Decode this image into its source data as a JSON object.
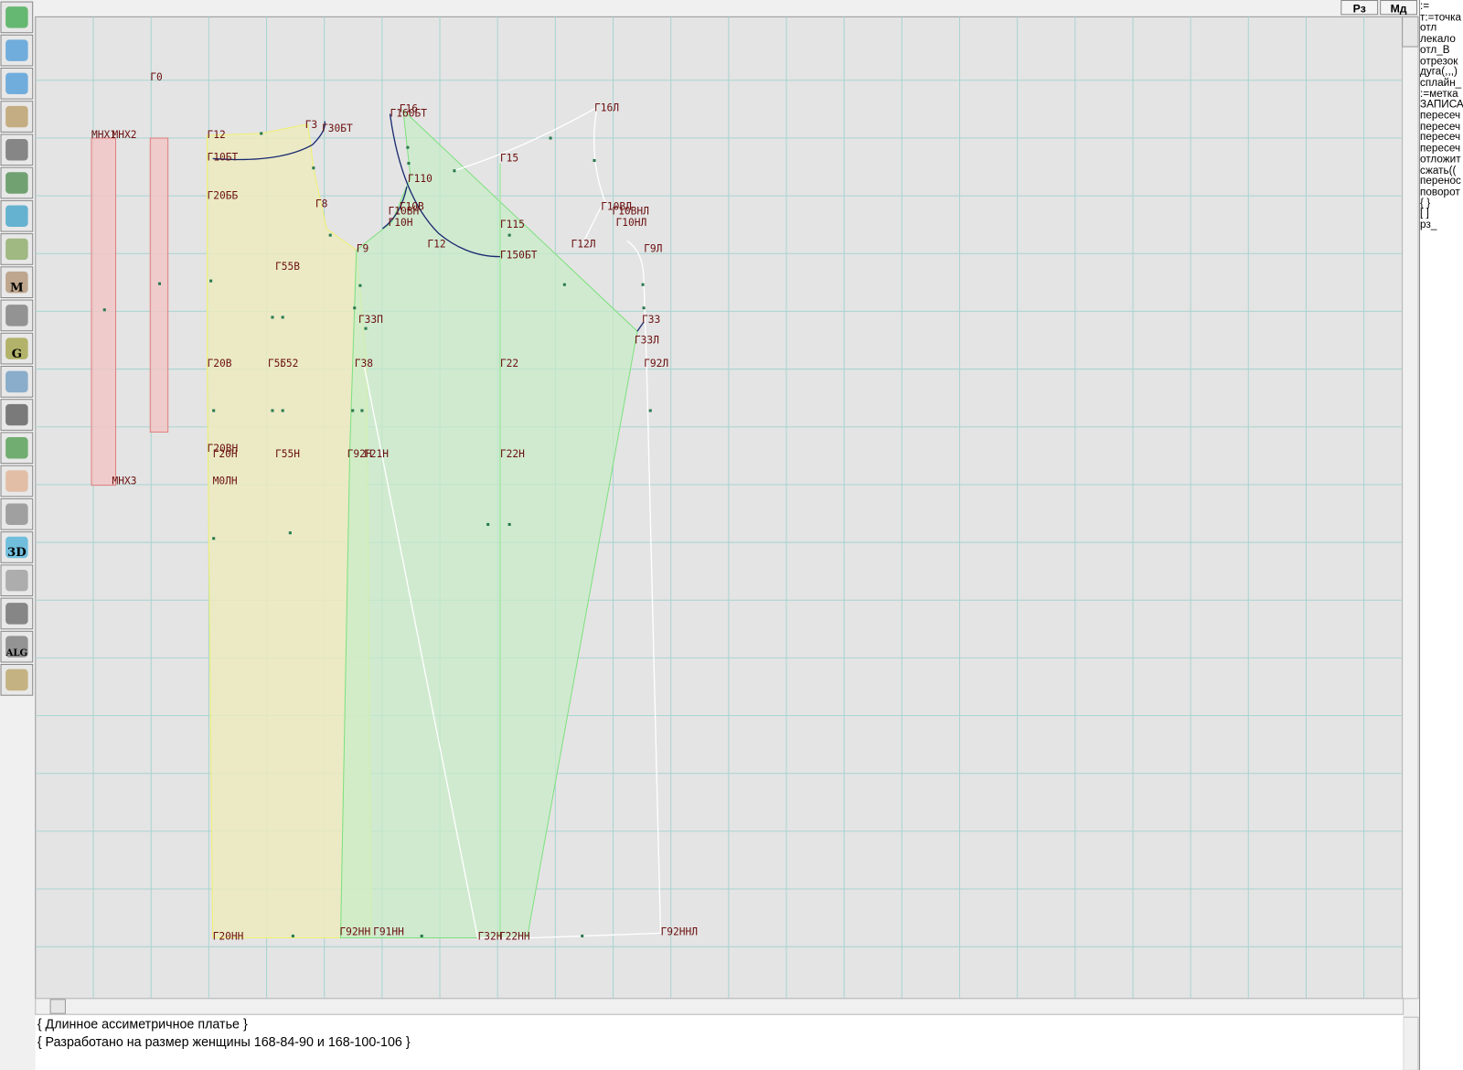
{
  "toolbar": {
    "buttons": [
      "Рз",
      "Мд"
    ],
    "icon_labels": [
      "M",
      "G",
      "3D",
      "ALG"
    ]
  },
  "canvas": {
    "labels": [
      "Г0",
      "МНХ1",
      "МНХ2",
      "Г12",
      "Г3",
      "Г30БТ",
      "Г10БТ",
      "Г20ББ",
      "Г8",
      "Г16",
      "Г160БТ",
      "Г15",
      "Г16Л",
      "Г110",
      "Г10В",
      "Г10ВН",
      "Г10Н",
      "Г9",
      "Г12",
      "Г115",
      "Г150БТ",
      "Г10ВЛ",
      "Г10ВНЛ",
      "Г10НЛ",
      "Г12Л",
      "Г9Л",
      "Г55В",
      "Г33П",
      "Г33",
      "Г33Л",
      "Г20В",
      "Г55",
      "Г52",
      "Г38",
      "Г22",
      "Г92Л",
      "Г20ВН",
      "Г20Н",
      "Г55Н",
      "Г92Н",
      "Г21Н",
      "Г22Н",
      "МНХ3",
      "М0ЛН",
      "Г20НН",
      "Г92НН",
      "Г91НН",
      "Г32Н",
      "Г22НН",
      "Г92ННЛ"
    ]
  },
  "command_panel": {
    "items": [
      ":=",
      "т:=точка",
      "отл",
      "лекало",
      "отл_В",
      "отрезок",
      "дуга(,,,)",
      "сплайн_",
      ":=метка",
      "ЗАПИСА",
      "пересеч",
      "пересеч",
      "пересеч",
      "пересеч",
      "отложит",
      "сжать((",
      "перенос",
      "поворот",
      "{ }",
      "[ ]",
      "рз_"
    ]
  },
  "text_area": {
    "lines": [
      "{ Длинное ассиметричное платье }",
      "{ Разработано на размер женщины 168-84-90 и 168-100-106 }"
    ]
  }
}
